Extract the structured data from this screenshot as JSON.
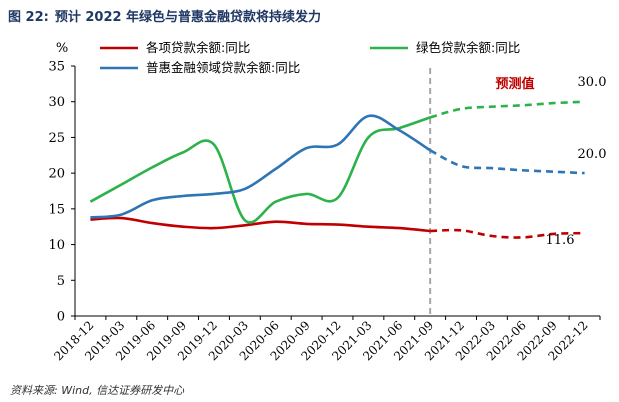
{
  "figure": {
    "number": "图 22:",
    "title": "预计 2022 年绿色与普惠金融贷款将持续发力",
    "source": "资料来源: Wind, 信达证券研发中心"
  },
  "chart_data": {
    "type": "line",
    "ylabel": "%",
    "ylim": [
      0,
      35
    ],
    "yticks": [
      "0",
      "5",
      "10",
      "15",
      "20",
      "25",
      "30",
      "35"
    ],
    "x": [
      "2018-12",
      "2019-03",
      "2019-06",
      "2019-09",
      "2019-12",
      "2020-03",
      "2020-06",
      "2020-09",
      "2020-12",
      "2021-03",
      "2021-06",
      "2021-09",
      "2021-12",
      "2022-03",
      "2022-06",
      "2022-09",
      "2022-12"
    ],
    "forecast_start": "2021-09",
    "forecast_label": "预测值",
    "grid": false,
    "legend_position": "top",
    "series": [
      {
        "name": "各项贷款余额:同比",
        "color": "#c00000",
        "values": [
          13.5,
          13.7,
          13.0,
          12.5,
          12.3,
          12.7,
          13.2,
          12.9,
          12.8,
          12.5,
          12.3,
          11.9,
          12.0,
          11.2,
          11.0,
          11.5,
          11.6
        ],
        "end_label": "11.6"
      },
      {
        "name": "绿色贷款余额:同比",
        "color": "#2db24a",
        "values": [
          16.0,
          18.4,
          20.8,
          22.9,
          24.0,
          13.4,
          16.0,
          17.1,
          16.5,
          25.0,
          26.3,
          27.8,
          29.0,
          29.3,
          29.5,
          29.8,
          30.0
        ],
        "end_label": "30.0"
      },
      {
        "name": "普惠金融领域贷款余额:同比",
        "color": "#2e75b6",
        "values": [
          13.8,
          14.2,
          16.2,
          16.8,
          17.1,
          17.8,
          20.6,
          23.5,
          24.0,
          28.0,
          26.0,
          23.2,
          21.0,
          20.7,
          20.4,
          20.2,
          20.0
        ],
        "end_label": "20.0"
      }
    ]
  }
}
